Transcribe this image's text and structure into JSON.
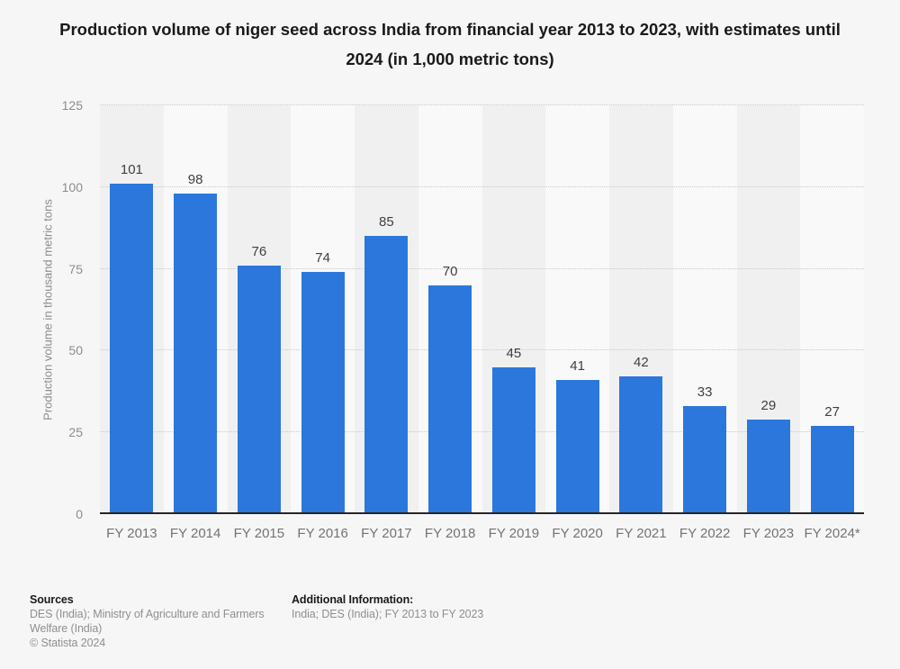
{
  "title": "Production volume of niger seed across India from financial year 2013 to 2023, with estimates until 2024 (in 1,000 metric tons)",
  "chart_data": {
    "type": "bar",
    "title": "Production volume of niger seed across India from financial year 2013 to 2023, with estimates until 2024 (in 1,000 metric tons)",
    "categories": [
      "FY 2013",
      "FY 2014",
      "FY 2015",
      "FY 2016",
      "FY 2017",
      "FY 2018",
      "FY 2019",
      "FY 2020",
      "FY 2021",
      "FY 2022",
      "FY 2023",
      "FY 2024*"
    ],
    "values": [
      101,
      98,
      76,
      74,
      85,
      70,
      45,
      41,
      42,
      33,
      29,
      27
    ],
    "xlabel": "",
    "ylabel": "Production volume in thousand metric tons",
    "ylim": [
      0,
      125
    ],
    "yticks": [
      0,
      25,
      50,
      75,
      100,
      125
    ],
    "grid": "horizontal-dotted",
    "legend": "none",
    "bar_labels_shown": true,
    "bar_color": "#2b77dc"
  },
  "colors": {
    "bar": "#2b77dc",
    "background": "#f6f6f6",
    "band_dark": "#f0f0f0",
    "band_light": "#f9f9f9",
    "axis_line": "#262626",
    "gridline": "#c9c9c9"
  },
  "footer": {
    "sources_label": "Sources",
    "sources_text": "DES (India); Ministry of Agriculture and Farmers Welfare (India)",
    "copyright": "© Statista 2024",
    "additional_label": "Additional Information:",
    "additional_text": "India; DES (India); FY 2013 to FY 2023"
  }
}
